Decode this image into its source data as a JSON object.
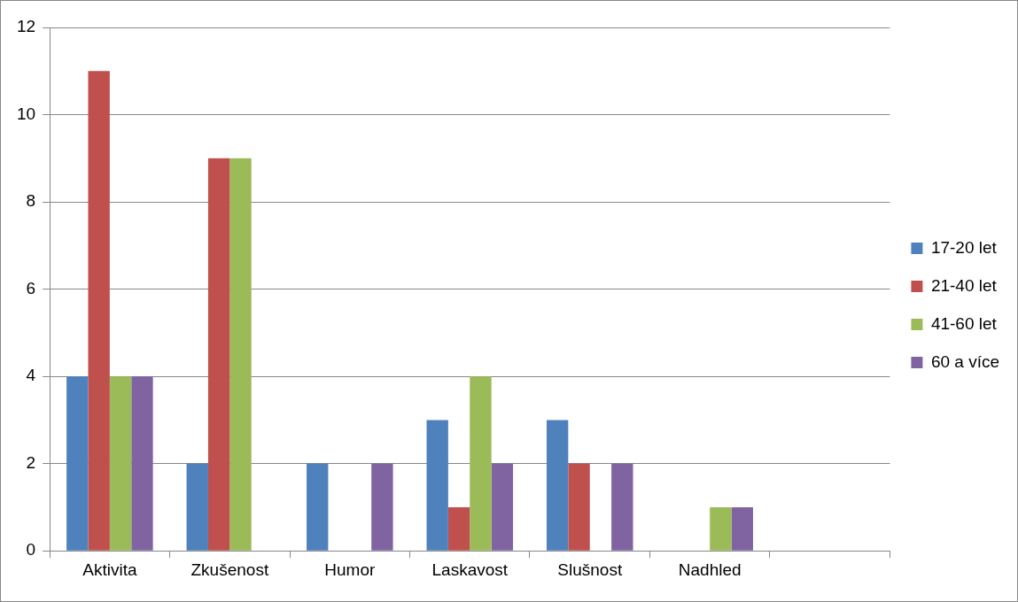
{
  "chart_data": {
    "type": "bar",
    "categories": [
      "Aktivita",
      "Zkušenost",
      "Humor",
      "Laskavost",
      "Slušnost",
      "Nadhled",
      null
    ],
    "series": [
      {
        "name": "17-20 let",
        "color": "#4f81bd",
        "values": [
          4,
          2,
          2,
          3,
          3,
          0,
          null
        ]
      },
      {
        "name": "21-40 let",
        "color": "#c0504d",
        "values": [
          11,
          9,
          0,
          1,
          2,
          0,
          null
        ]
      },
      {
        "name": "41-60 let",
        "color": "#9bbb59",
        "values": [
          4,
          9,
          0,
          4,
          0,
          1,
          null
        ]
      },
      {
        "name": "60 a více",
        "color": "#8064a2",
        "values": [
          4,
          0,
          2,
          2,
          2,
          1,
          null
        ]
      }
    ],
    "ylim": [
      0,
      12
    ],
    "yticks": [
      0,
      2,
      4,
      6,
      8,
      10,
      12
    ],
    "grid": "y",
    "legend": "right"
  }
}
